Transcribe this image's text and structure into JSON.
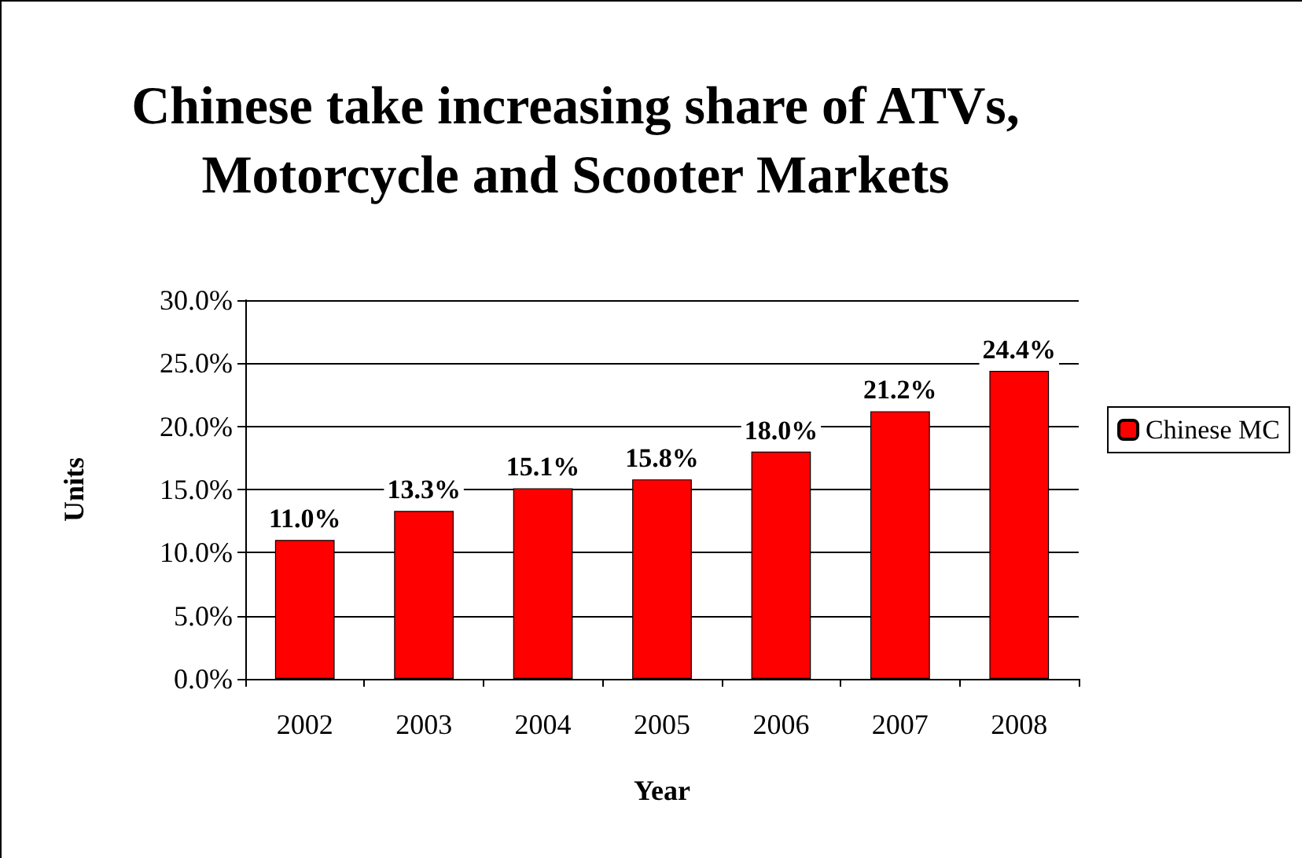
{
  "chart_data": {
    "type": "bar",
    "title": "Chinese take increasing share of ATVs,\nMotorcycle and Scooter Markets",
    "xlabel": "Year",
    "ylabel": "Units",
    "categories": [
      "2002",
      "2003",
      "2004",
      "2005",
      "2006",
      "2007",
      "2008"
    ],
    "series": [
      {
        "name": "Chinese MC",
        "color": "#ff0000",
        "values": [
          11.0,
          13.3,
          15.1,
          15.8,
          18.0,
          21.2,
          24.4
        ],
        "value_labels": [
          "11.0%",
          "13.3%",
          "15.1%",
          "15.8%",
          "18.0%",
          "21.2%",
          "24.4%"
        ]
      }
    ],
    "ylim": [
      0,
      30
    ],
    "yticks": [
      {
        "value": 0,
        "label": "0.0%"
      },
      {
        "value": 5,
        "label": "5.0%"
      },
      {
        "value": 10,
        "label": "10.0%"
      },
      {
        "value": 15,
        "label": "15.0%"
      },
      {
        "value": 20,
        "label": "20.0%"
      },
      {
        "value": 25,
        "label": "25.0%"
      },
      {
        "value": 30,
        "label": "30.0%"
      }
    ],
    "grid": "y",
    "legend": "right"
  }
}
